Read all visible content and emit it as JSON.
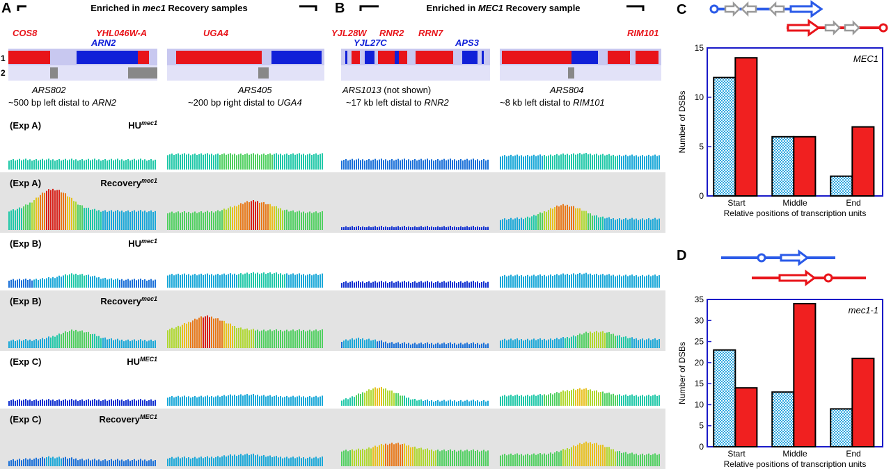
{
  "panels": {
    "A": {
      "letter": "A",
      "header": {
        "pre": "Enriched in ",
        "gene": "mec1",
        "post": " Recovery samples"
      },
      "genes": [
        "COS8",
        "YHL046W-A",
        "ARN2",
        "UGA4"
      ],
      "track_labels": [
        "1",
        "2"
      ],
      "ars1": {
        "name": "ARS802",
        "desc_pre": "~500 bp left distal to ",
        "desc_gene": "ARN2"
      },
      "ars2": {
        "name": "ARS405",
        "desc_pre": "~200 bp right distal to ",
        "desc_gene": "UGA4"
      }
    },
    "B": {
      "letter": "B",
      "header": {
        "pre": "Enriched in ",
        "gene": "MEC1",
        "post": " Recovery sample"
      },
      "genes": [
        "YJL28W",
        "RNR2",
        "RRN7",
        "YJL27C",
        "APS3",
        "RIM101"
      ],
      "ars1": {
        "name": "ARS1013",
        "note": " (not shown)",
        "desc_pre": "~17 kb left distal to ",
        "desc_gene": "RNR2"
      },
      "ars2": {
        "name": "ARS804",
        "desc_pre": "~8 kb left distal to ",
        "desc_gene": "RIM101"
      }
    }
  },
  "rows": [
    {
      "exp": "(Exp A)",
      "label": "HU",
      "sup": "mec1",
      "shaded": false
    },
    {
      "exp": "(Exp A)",
      "label": "Recovery",
      "sup": "mec1",
      "shaded": true
    },
    {
      "exp": "(Exp B)",
      "label": "HU",
      "sup": "mec1",
      "shaded": false
    },
    {
      "exp": "(Exp B)",
      "label": "Recovery",
      "sup": "mec1",
      "shaded": true
    },
    {
      "exp": "(Exp C)",
      "label": "HU",
      "sup": "MEC1",
      "shaded": false
    },
    {
      "exp": "(Exp C)",
      "label": "Recovery",
      "sup": "MEC1",
      "shaded": true
    }
  ],
  "colors": {
    "red": "#e8141a",
    "blue": "#1020d8",
    "axis": "#1a1ac8",
    "grey_bg": "#e3e3e3",
    "track_bg": "#c8c8f0"
  },
  "chart_data": [
    {
      "panel": "C",
      "type": "bar",
      "label_text": "MEC1",
      "categories": [
        "Start",
        "Middle",
        "End"
      ],
      "series": [
        {
          "pattern": "checkered-blue",
          "values": [
            12,
            6,
            2
          ]
        },
        {
          "pattern": "solid-red",
          "values": [
            14,
            6,
            7
          ]
        }
      ],
      "xlabel": "Relative positions of transcription units",
      "ylabel": "Number of DSBs",
      "ylim": [
        0,
        15
      ],
      "yticks": [
        "0",
        "5",
        "10",
        "15"
      ]
    },
    {
      "panel": "D",
      "type": "bar",
      "label_text": "mec1-1",
      "categories": [
        "Start",
        "Middle",
        "End"
      ],
      "series": [
        {
          "pattern": "checkered-blue",
          "values": [
            23,
            13,
            9
          ]
        },
        {
          "pattern": "solid-red",
          "values": [
            14,
            34,
            21
          ]
        }
      ],
      "xlabel": "Relative positions of transcription units",
      "ylabel": "Number of DSBs",
      "ylim": [
        0,
        35
      ],
      "yticks": [
        "0",
        "5",
        "10",
        "15",
        "20",
        "25",
        "30",
        "35"
      ]
    }
  ],
  "panel_letters": {
    "C": "C",
    "D": "D"
  }
}
